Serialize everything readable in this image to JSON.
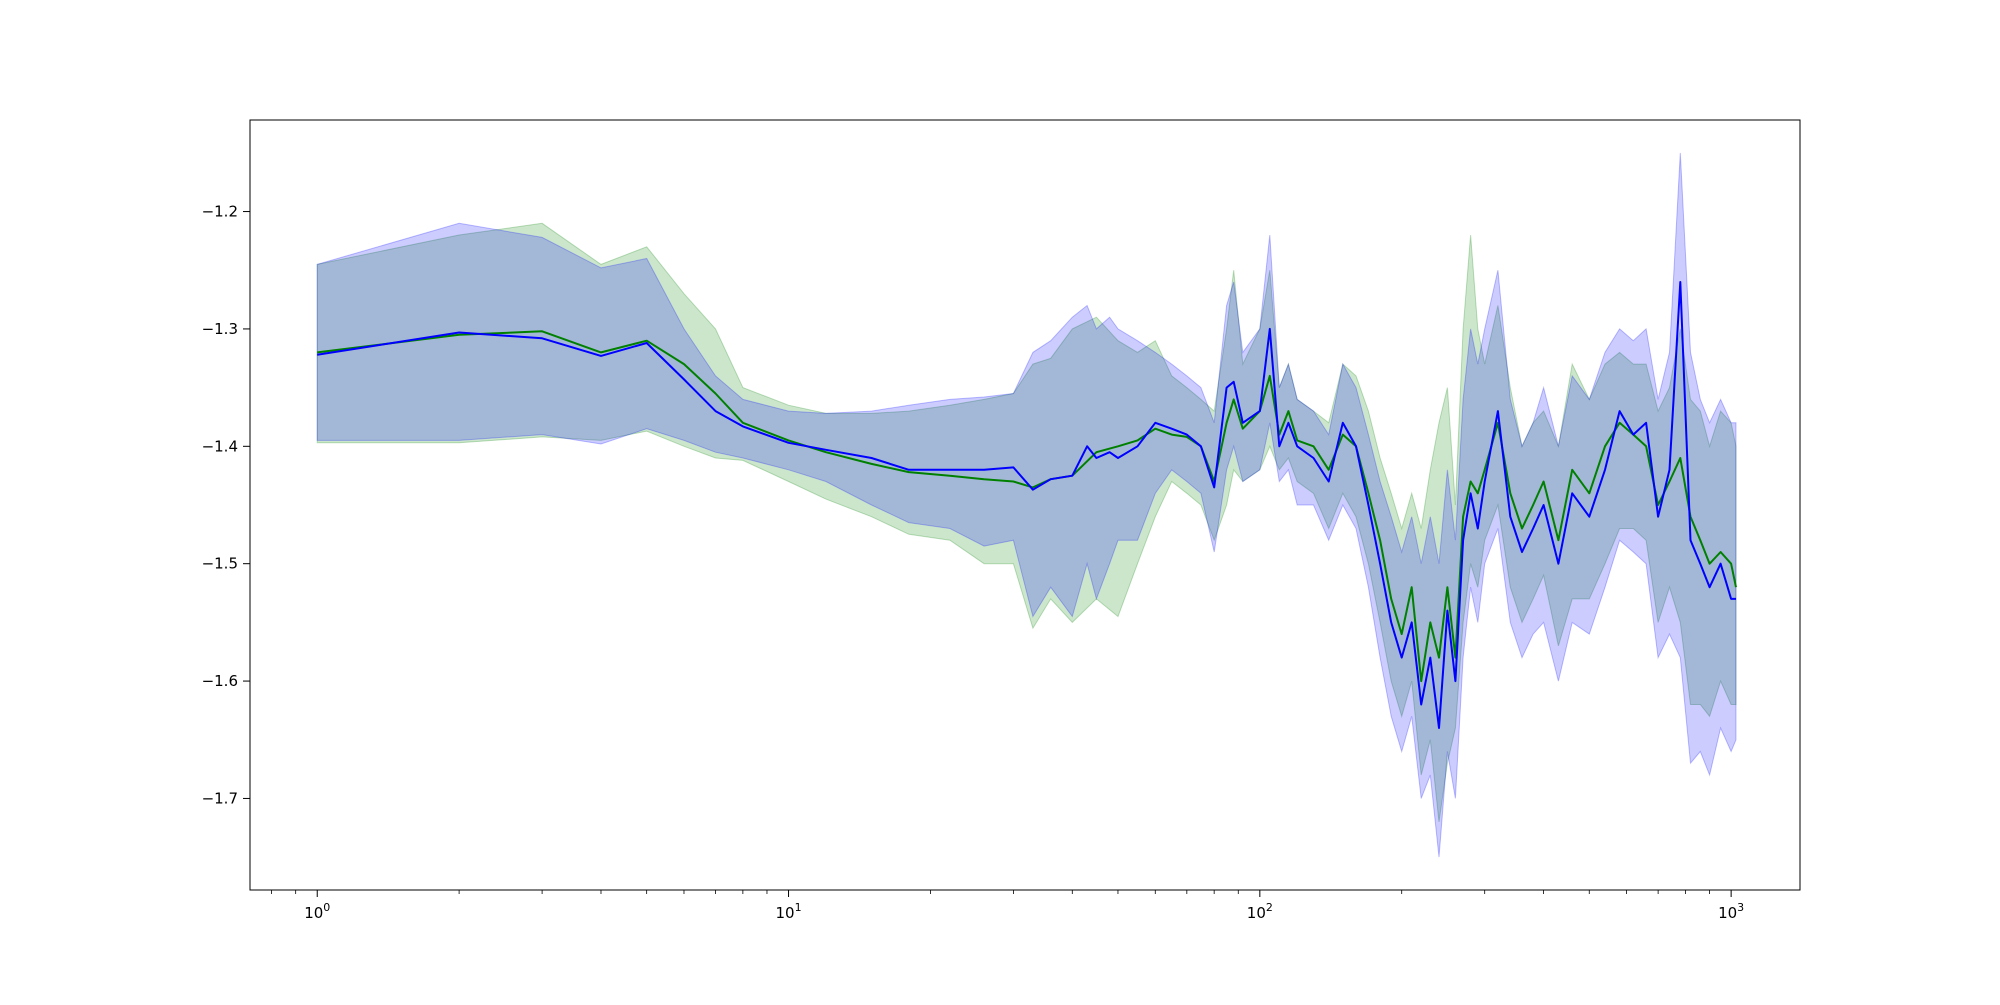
{
  "chart_data": {
    "type": "line",
    "title": "",
    "xlabel": "",
    "ylabel": "",
    "xscale": "log",
    "xlim": [
      0.72,
      1400
    ],
    "ylim": [
      -1.778,
      -1.122
    ],
    "grid": false,
    "legend": "none",
    "x_ticks": [
      {
        "value": 1,
        "base": "10",
        "exp": "0"
      },
      {
        "value": 10,
        "base": "10",
        "exp": "1"
      },
      {
        "value": 100,
        "base": "10",
        "exp": "2"
      },
      {
        "value": 1000,
        "base": "10",
        "exp": "3"
      }
    ],
    "y_ticks": [
      {
        "value": -1.2,
        "label": "−1.2"
      },
      {
        "value": -1.3,
        "label": "−1.3"
      },
      {
        "value": -1.4,
        "label": "−1.4"
      },
      {
        "value": -1.5,
        "label": "−1.5"
      },
      {
        "value": -1.6,
        "label": "−1.6"
      },
      {
        "value": -1.7,
        "label": "−1.7"
      }
    ],
    "series": [
      {
        "color": "#008000",
        "band_color": "#008000",
        "x": [
          1,
          2,
          3,
          4,
          5,
          6,
          7,
          8,
          10,
          12,
          15,
          18,
          22,
          26,
          30,
          33,
          36,
          40,
          45,
          50,
          55,
          60,
          65,
          70,
          75,
          80,
          85,
          88,
          92,
          100,
          105,
          110,
          115,
          120,
          130,
          140,
          150,
          160,
          170,
          180,
          190,
          200,
          210,
          220,
          230,
          240,
          250,
          260,
          270,
          280,
          290,
          300,
          320,
          340,
          360,
          380,
          400,
          430,
          460,
          500,
          540,
          580,
          620,
          660,
          700,
          740,
          780,
          820,
          860,
          900,
          950,
          1000,
          1024
        ],
        "y": [
          -1.32,
          -1.305,
          -1.302,
          -1.32,
          -1.31,
          -1.33,
          -1.355,
          -1.38,
          -1.395,
          -1.405,
          -1.415,
          -1.422,
          -1.425,
          -1.428,
          -1.43,
          -1.435,
          -1.428,
          -1.425,
          -1.405,
          -1.4,
          -1.395,
          -1.385,
          -1.39,
          -1.392,
          -1.4,
          -1.43,
          -1.38,
          -1.36,
          -1.385,
          -1.37,
          -1.34,
          -1.39,
          -1.37,
          -1.395,
          -1.4,
          -1.42,
          -1.39,
          -1.4,
          -1.44,
          -1.48,
          -1.53,
          -1.56,
          -1.52,
          -1.6,
          -1.55,
          -1.58,
          -1.52,
          -1.58,
          -1.46,
          -1.43,
          -1.44,
          -1.42,
          -1.38,
          -1.44,
          -1.47,
          -1.45,
          -1.43,
          -1.48,
          -1.42,
          -1.44,
          -1.4,
          -1.38,
          -1.39,
          -1.4,
          -1.45,
          -1.43,
          -1.41,
          -1.46,
          -1.48,
          -1.5,
          -1.49,
          -1.5,
          -1.52
        ],
        "lower": [
          -1.397,
          -1.397,
          -1.392,
          -1.395,
          -1.387,
          -1.4,
          -1.41,
          -1.412,
          -1.43,
          -1.445,
          -1.46,
          -1.475,
          -1.48,
          -1.5,
          -1.5,
          -1.555,
          -1.53,
          -1.55,
          -1.53,
          -1.545,
          -1.5,
          -1.46,
          -1.43,
          -1.44,
          -1.45,
          -1.48,
          -1.45,
          -1.42,
          -1.43,
          -1.42,
          -1.4,
          -1.42,
          -1.41,
          -1.43,
          -1.44,
          -1.47,
          -1.44,
          -1.46,
          -1.5,
          -1.55,
          -1.6,
          -1.63,
          -1.6,
          -1.68,
          -1.65,
          -1.72,
          -1.67,
          -1.64,
          -1.55,
          -1.5,
          -1.52,
          -1.48,
          -1.45,
          -1.52,
          -1.55,
          -1.53,
          -1.51,
          -1.57,
          -1.53,
          -1.53,
          -1.5,
          -1.47,
          -1.47,
          -1.48,
          -1.55,
          -1.52,
          -1.55,
          -1.62,
          -1.62,
          -1.63,
          -1.6,
          -1.62,
          -1.62
        ],
        "upper": [
          -1.245,
          -1.22,
          -1.21,
          -1.245,
          -1.23,
          -1.27,
          -1.3,
          -1.35,
          -1.365,
          -1.372,
          -1.372,
          -1.37,
          -1.365,
          -1.36,
          -1.355,
          -1.33,
          -1.325,
          -1.3,
          -1.29,
          -1.31,
          -1.32,
          -1.31,
          -1.34,
          -1.35,
          -1.36,
          -1.37,
          -1.3,
          -1.25,
          -1.33,
          -1.3,
          -1.25,
          -1.35,
          -1.33,
          -1.36,
          -1.37,
          -1.38,
          -1.33,
          -1.34,
          -1.37,
          -1.41,
          -1.44,
          -1.47,
          -1.44,
          -1.47,
          -1.42,
          -1.38,
          -1.35,
          -1.45,
          -1.3,
          -1.22,
          -1.3,
          -1.33,
          -1.28,
          -1.35,
          -1.4,
          -1.38,
          -1.37,
          -1.4,
          -1.33,
          -1.36,
          -1.33,
          -1.32,
          -1.33,
          -1.33,
          -1.37,
          -1.35,
          -1.3,
          -1.36,
          -1.37,
          -1.4,
          -1.37,
          -1.38,
          -1.4
        ]
      },
      {
        "color": "#0000ff",
        "band_color": "#0000ff",
        "x": [
          1,
          2,
          3,
          4,
          5,
          6,
          7,
          8,
          10,
          12,
          15,
          18,
          22,
          26,
          30,
          33,
          36,
          40,
          43,
          45,
          48,
          50,
          55,
          60,
          65,
          70,
          75,
          80,
          85,
          88,
          92,
          100,
          105,
          110,
          115,
          120,
          130,
          140,
          150,
          160,
          170,
          180,
          190,
          200,
          210,
          220,
          230,
          240,
          250,
          260,
          270,
          280,
          290,
          300,
          320,
          340,
          360,
          380,
          400,
          430,
          460,
          500,
          540,
          580,
          620,
          660,
          700,
          740,
          780,
          820,
          860,
          900,
          950,
          1000,
          1024
        ],
        "y": [
          -1.322,
          -1.303,
          -1.308,
          -1.323,
          -1.312,
          -1.343,
          -1.37,
          -1.383,
          -1.397,
          -1.403,
          -1.41,
          -1.42,
          -1.42,
          -1.42,
          -1.418,
          -1.437,
          -1.428,
          -1.425,
          -1.4,
          -1.41,
          -1.405,
          -1.41,
          -1.4,
          -1.38,
          -1.385,
          -1.39,
          -1.4,
          -1.435,
          -1.35,
          -1.345,
          -1.38,
          -1.37,
          -1.3,
          -1.4,
          -1.38,
          -1.4,
          -1.41,
          -1.43,
          -1.38,
          -1.4,
          -1.45,
          -1.5,
          -1.55,
          -1.58,
          -1.55,
          -1.62,
          -1.58,
          -1.64,
          -1.54,
          -1.6,
          -1.48,
          -1.44,
          -1.47,
          -1.43,
          -1.37,
          -1.46,
          -1.49,
          -1.47,
          -1.45,
          -1.5,
          -1.44,
          -1.46,
          -1.42,
          -1.37,
          -1.39,
          -1.38,
          -1.46,
          -1.42,
          -1.26,
          -1.48,
          -1.5,
          -1.52,
          -1.5,
          -1.53,
          -1.53
        ],
        "lower": [
          -1.395,
          -1.395,
          -1.39,
          -1.398,
          -1.385,
          -1.395,
          -1.405,
          -1.41,
          -1.42,
          -1.43,
          -1.45,
          -1.465,
          -1.47,
          -1.485,
          -1.48,
          -1.545,
          -1.52,
          -1.545,
          -1.5,
          -1.53,
          -1.5,
          -1.48,
          -1.48,
          -1.44,
          -1.42,
          -1.43,
          -1.44,
          -1.49,
          -1.42,
          -1.4,
          -1.43,
          -1.42,
          -1.38,
          -1.43,
          -1.42,
          -1.45,
          -1.45,
          -1.48,
          -1.45,
          -1.47,
          -1.52,
          -1.58,
          -1.63,
          -1.66,
          -1.63,
          -1.7,
          -1.68,
          -1.75,
          -1.66,
          -1.7,
          -1.58,
          -1.52,
          -1.55,
          -1.5,
          -1.47,
          -1.55,
          -1.58,
          -1.56,
          -1.55,
          -1.6,
          -1.55,
          -1.56,
          -1.52,
          -1.48,
          -1.49,
          -1.5,
          -1.58,
          -1.56,
          -1.58,
          -1.67,
          -1.66,
          -1.68,
          -1.64,
          -1.66,
          -1.65
        ],
        "upper": [
          -1.245,
          -1.21,
          -1.222,
          -1.248,
          -1.24,
          -1.3,
          -1.34,
          -1.36,
          -1.37,
          -1.372,
          -1.37,
          -1.365,
          -1.36,
          -1.358,
          -1.355,
          -1.32,
          -1.31,
          -1.29,
          -1.28,
          -1.3,
          -1.29,
          -1.3,
          -1.31,
          -1.32,
          -1.33,
          -1.34,
          -1.35,
          -1.38,
          -1.28,
          -1.26,
          -1.32,
          -1.3,
          -1.22,
          -1.35,
          -1.33,
          -1.36,
          -1.37,
          -1.39,
          -1.33,
          -1.35,
          -1.39,
          -1.43,
          -1.46,
          -1.49,
          -1.46,
          -1.5,
          -1.46,
          -1.5,
          -1.42,
          -1.48,
          -1.36,
          -1.3,
          -1.33,
          -1.3,
          -1.25,
          -1.36,
          -1.4,
          -1.38,
          -1.35,
          -1.4,
          -1.34,
          -1.36,
          -1.32,
          -1.3,
          -1.31,
          -1.3,
          -1.36,
          -1.32,
          -1.15,
          -1.32,
          -1.36,
          -1.38,
          -1.36,
          -1.38,
          -1.38
        ]
      }
    ]
  }
}
